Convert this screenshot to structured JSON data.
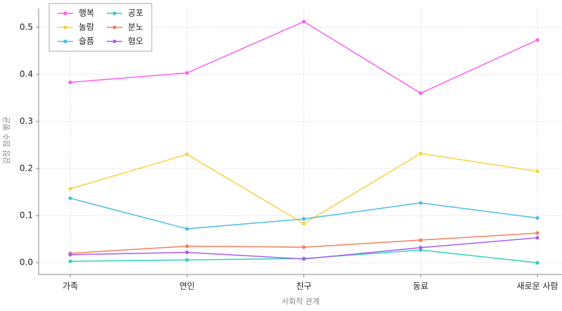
{
  "chart_data": {
    "type": "line",
    "x_label": "사회적 관계",
    "y_label": "감정 점수 평균",
    "categories": [
      "가족",
      "연인",
      "친구",
      "동료",
      "새로운 사람"
    ],
    "series": [
      {
        "name": "행복",
        "color": "#ff5cf0",
        "values": [
          0.383,
          0.403,
          0.512,
          0.36,
          0.473
        ]
      },
      {
        "name": "놀람",
        "color": "#f6d23e",
        "values": [
          0.157,
          0.23,
          0.083,
          0.232,
          0.194
        ]
      },
      {
        "name": "슬픔",
        "color": "#4fbde3",
        "values": [
          0.137,
          0.072,
          0.093,
          0.127,
          0.095
        ]
      },
      {
        "name": "공포",
        "color": "#2fd3b6",
        "values": [
          0.003,
          0.006,
          0.009,
          0.027,
          0.0
        ]
      },
      {
        "name": "분노",
        "color": "#f17f5f",
        "values": [
          0.02,
          0.035,
          0.033,
          0.048,
          0.063
        ]
      },
      {
        "name": "혐오",
        "color": "#a95cf2",
        "values": [
          0.017,
          0.022,
          0.008,
          0.032,
          0.053
        ]
      }
    ],
    "ylim": [
      -0.025,
      0.54
    ],
    "yticks": [
      {
        "value": 0,
        "label": "0.0"
      },
      0.1,
      0.2,
      0.3,
      0.4,
      0.5
    ],
    "grid": true,
    "legend": "upper-left"
  }
}
